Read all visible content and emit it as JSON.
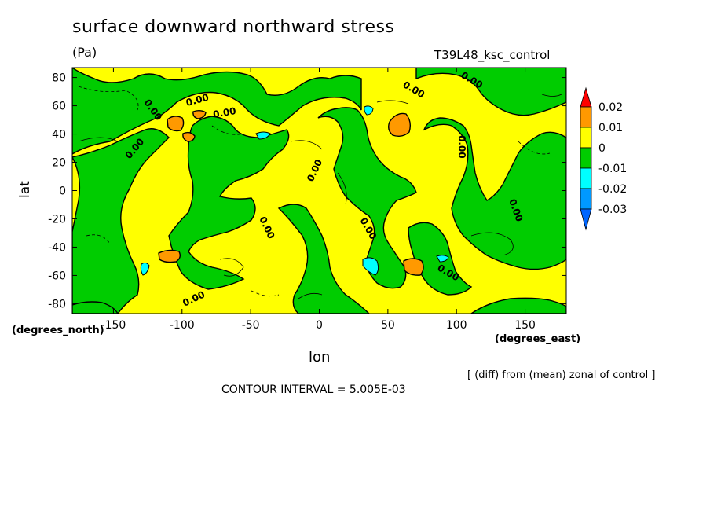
{
  "title": "surface downward northward stress",
  "units": "(Pa)",
  "run_label": "T39L48_ksc_control",
  "note": "[ (diff) from (mean) zonal of control ]",
  "contour_interval": "CONTOUR INTERVAL = 5.005E-03",
  "chart_data": {
    "type": "heatmap",
    "title": "surface downward northward stress",
    "xlabel": "lon",
    "ylabel": "lat",
    "x_units": "(degrees_east)",
    "y_units": "(degrees_north)",
    "xlim": [
      -180,
      180
    ],
    "ylim": [
      -87,
      87
    ],
    "x_ticks": [
      -150,
      -100,
      -50,
      0,
      50,
      100,
      150
    ],
    "y_ticks": [
      80,
      60,
      40,
      20,
      0,
      -20,
      -40,
      -60,
      -80
    ],
    "contour_label": "0.00",
    "legend": {
      "levels": [
        "0.02",
        "0.01",
        "0",
        "-0.01",
        "-0.02",
        "-0.03"
      ],
      "colors": [
        "#ff0000",
        "#ff9900",
        "#ffff00",
        "#00cc00",
        "#00ffff",
        "#0099ff",
        "#0066ff"
      ]
    },
    "colors": {
      "positive_low": "#ffff00",
      "positive_mid": "#ff9900",
      "negative_low": "#00cc00",
      "negative_mid": "#00ffff"
    }
  }
}
